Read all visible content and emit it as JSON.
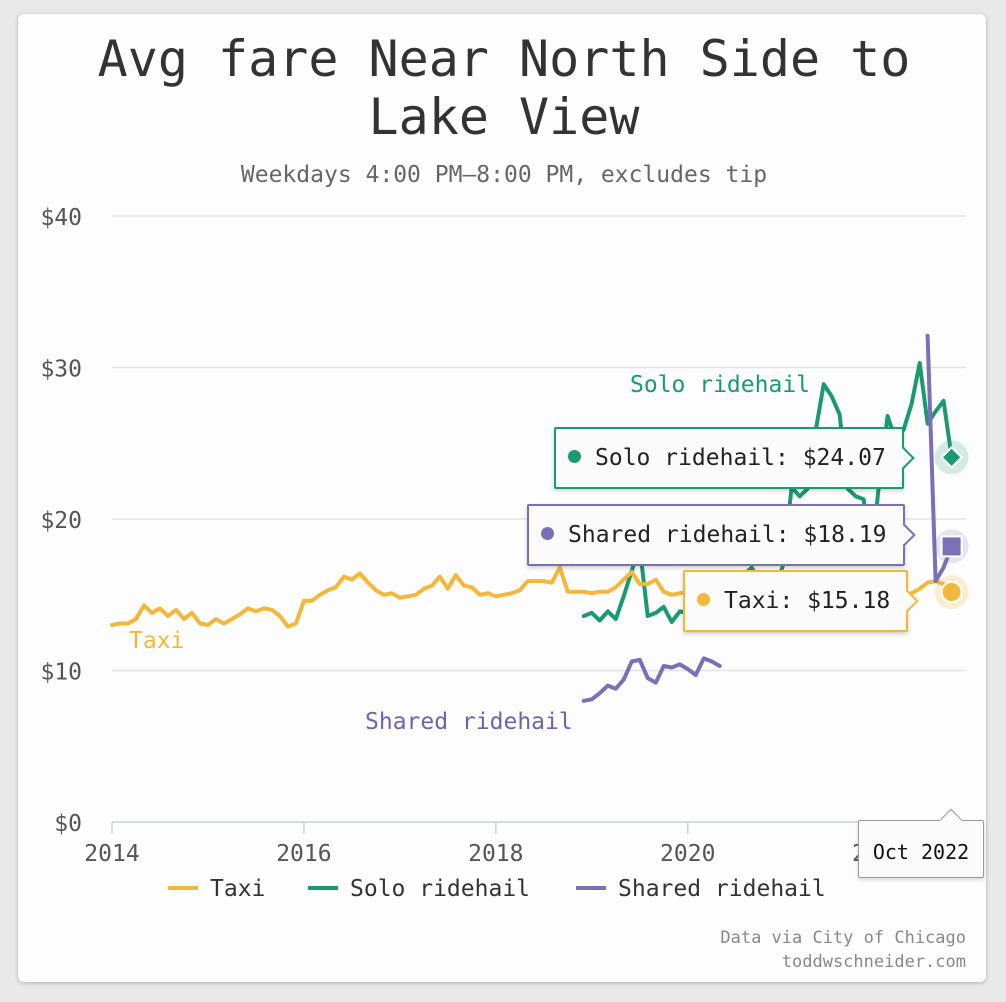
{
  "chart_data": {
    "type": "line",
    "title": "Avg fare Near North Side to Lake View",
    "subtitle": "Weekdays 4:00 PM–8:00 PM, excludes tip",
    "y_tick_labels": [
      "$0",
      "$10",
      "$20",
      "$30",
      "$40"
    ],
    "y_ticks": [
      0,
      10,
      20,
      30,
      40
    ],
    "x_tick_labels": [
      "2014",
      "2016",
      "2018",
      "2020",
      "2022"
    ],
    "x_ticks": [
      2014,
      2016,
      2018,
      2020,
      2022
    ],
    "xlim": [
      2014,
      2022.9
    ],
    "ylim": [
      0,
      40
    ],
    "grid": true,
    "legend_position": "bottom",
    "series": [
      {
        "name": "Taxi",
        "label": "Taxi",
        "color": "#f2b73b",
        "x": [
          2014.0,
          2014.083,
          2014.167,
          2014.25,
          2014.333,
          2014.417,
          2014.5,
          2014.583,
          2014.667,
          2014.75,
          2014.833,
          2014.917,
          2015.0,
          2015.083,
          2015.167,
          2015.25,
          2015.333,
          2015.417,
          2015.5,
          2015.583,
          2015.667,
          2015.75,
          2015.833,
          2015.917,
          2016.0,
          2016.083,
          2016.167,
          2016.25,
          2016.333,
          2016.417,
          2016.5,
          2016.583,
          2016.667,
          2016.75,
          2016.833,
          2016.917,
          2017.0,
          2017.083,
          2017.167,
          2017.25,
          2017.333,
          2017.417,
          2017.5,
          2017.583,
          2017.667,
          2017.75,
          2017.833,
          2017.917,
          2018.0,
          2018.083,
          2018.167,
          2018.25,
          2018.333,
          2018.417,
          2018.5,
          2018.583,
          2018.667,
          2018.75,
          2018.833,
          2018.917,
          2019.0,
          2019.083,
          2019.167,
          2019.25,
          2019.333,
          2019.417,
          2019.5,
          2019.583,
          2019.667,
          2019.75,
          2019.833,
          2019.917,
          2020.0,
          2020.083,
          2020.167,
          2020.25,
          2020.333,
          2020.417,
          2020.5,
          2020.583,
          2020.667,
          2020.75,
          2020.833,
          2020.917,
          2021.0,
          2021.083,
          2021.167,
          2021.25,
          2021.333,
          2021.417,
          2021.5,
          2021.583,
          2021.667,
          2021.75,
          2021.833,
          2021.917,
          2022.0,
          2022.083,
          2022.167,
          2022.25,
          2022.333,
          2022.417,
          2022.5,
          2022.583,
          2022.667,
          2022.75
        ],
        "values": [
          13.0,
          13.1,
          13.1,
          13.4,
          14.3,
          13.8,
          14.1,
          13.6,
          14.0,
          13.4,
          13.8,
          13.1,
          13.0,
          13.4,
          13.1,
          13.4,
          13.7,
          14.1,
          13.9,
          14.1,
          14.0,
          13.6,
          12.9,
          13.1,
          14.6,
          14.6,
          15.0,
          15.3,
          15.5,
          16.2,
          16.0,
          16.4,
          15.8,
          15.3,
          15.0,
          15.1,
          14.8,
          14.9,
          15.0,
          15.4,
          15.6,
          16.2,
          15.4,
          16.3,
          15.6,
          15.5,
          15.0,
          15.1,
          14.9,
          15.0,
          15.1,
          15.3,
          15.9,
          15.9,
          15.9,
          15.8,
          16.8,
          15.2,
          15.2,
          15.2,
          15.1,
          15.2,
          15.2,
          15.5,
          16.0,
          16.5,
          15.7,
          15.7,
          16.0,
          15.2,
          15.0,
          15.1,
          15.2,
          15.0,
          14.8,
          15.3,
          14.2,
          13.9,
          14.0,
          14.4,
          14.7,
          14.0,
          14.3,
          14.6,
          14.5,
          14.2,
          14.0,
          14.7,
          14.8,
          14.9,
          15.0,
          15.3,
          15.2,
          15.9,
          15.4,
          15.0,
          15.1,
          15.2,
          15.0,
          14.9,
          15.1,
          15.4,
          15.8,
          15.9,
          15.7,
          15.18
        ]
      },
      {
        "name": "Solo ridehail",
        "label": "Solo ridehail",
        "color": "#1a9a6e",
        "x": [
          2018.917,
          2019.0,
          2019.083,
          2019.167,
          2019.25,
          2019.333,
          2019.417,
          2019.5,
          2019.583,
          2019.667,
          2019.75,
          2019.833,
          2019.917,
          2020.0,
          2020.083,
          2020.167,
          2020.25,
          2020.333,
          2020.417,
          2020.5,
          2020.583,
          2020.667,
          2020.75,
          2020.833,
          2020.917,
          2021.0,
          2021.083,
          2021.167,
          2021.25,
          2021.333,
          2021.417,
          2021.5,
          2021.583,
          2021.667,
          2021.75,
          2021.833,
          2021.917,
          2022.0,
          2022.083,
          2022.167,
          2022.25,
          2022.333,
          2022.417,
          2022.5,
          2022.583,
          2022.667,
          2022.75
        ],
        "values": [
          13.6,
          13.8,
          13.3,
          13.9,
          13.4,
          14.9,
          16.6,
          18.1,
          13.6,
          13.8,
          14.2,
          13.2,
          13.9,
          13.8,
          14.2,
          15.4,
          15.0,
          14.1,
          14.2,
          15.1,
          16.3,
          16.8,
          15.9,
          15.2,
          15.4,
          17.1,
          22.1,
          21.5,
          22.0,
          25.8,
          28.9,
          28.1,
          26.9,
          22.0,
          21.5,
          21.3,
          17.6,
          22.7,
          26.8,
          25.2,
          25.9,
          27.6,
          30.3,
          26.3,
          27.1,
          27.8,
          24.07
        ]
      },
      {
        "name": "Shared ridehail",
        "label": "Shared ridehail",
        "color": "#7b6fb5",
        "x": [
          2018.917,
          2019.0,
          2019.083,
          2019.167,
          2019.25,
          2019.333,
          2019.417,
          2019.5,
          2019.583,
          2019.667,
          2019.75,
          2019.833,
          2019.917,
          2020.0,
          2020.083,
          2020.167,
          2020.25,
          2020.333,
          2022.5,
          2022.583,
          2022.667,
          2022.75
        ],
        "values": [
          8.0,
          8.1,
          8.5,
          9.0,
          8.8,
          9.4,
          10.6,
          10.7,
          9.5,
          9.2,
          10.3,
          10.2,
          10.4,
          10.1,
          9.7,
          10.8,
          10.6,
          10.3,
          32.1,
          15.9,
          16.8,
          18.19
        ]
      }
    ],
    "hover": {
      "x": 2022.75,
      "date_label": "Oct 2022",
      "tooltips": [
        {
          "series": "Solo ridehail",
          "text": "Solo ridehail: $24.07",
          "value": 24.07,
          "marker": "diamond"
        },
        {
          "series": "Shared ridehail",
          "text": "Shared ridehail: $18.19",
          "value": 18.19,
          "marker": "square"
        },
        {
          "series": "Taxi",
          "text": "Taxi: $15.18",
          "value": 15.18,
          "marker": "circle"
        }
      ]
    },
    "credits": [
      "Data via City of Chicago",
      "toddwschneider.com"
    ]
  }
}
